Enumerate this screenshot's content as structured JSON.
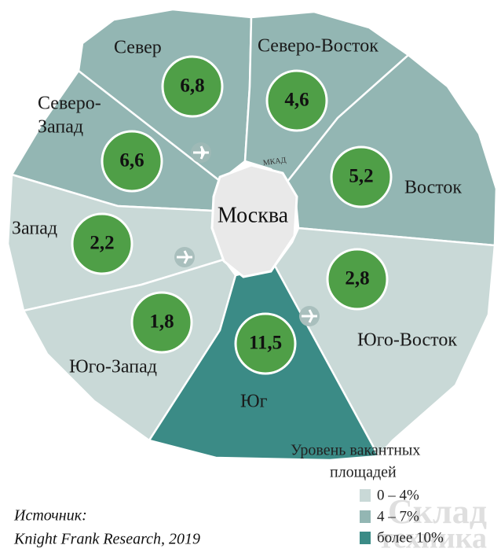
{
  "map": {
    "center": "Москва",
    "ring_road": "МКАД",
    "districts": [
      {
        "name": "Север",
        "value": "6,8"
      },
      {
        "name": "Северо-Восток",
        "value": "4,6"
      },
      {
        "name_lines": [
          "Северо-",
          "Запад"
        ],
        "value": "6,6"
      },
      {
        "name": "Восток",
        "value": "5,2"
      },
      {
        "name": "Запад",
        "value": "2,2"
      },
      {
        "name": "Юго-Восток",
        "value": "2,8"
      },
      {
        "name": "Юго-Запад",
        "value": "1,8"
      },
      {
        "name": "Юг",
        "value": "11,5"
      }
    ],
    "legend": {
      "title_lines": [
        "Уровень вакантных",
        "площадей"
      ],
      "items": [
        {
          "label": "0 – 4%",
          "color": "#c9d9d7"
        },
        {
          "label": "4 – 7%",
          "color": "#93b6b3"
        },
        {
          "label": "более 10%",
          "color": "#3b8b86"
        }
      ]
    },
    "source_lines": [
      "Источник:",
      "Knight Frank Research, 2019"
    ],
    "watermark_lines": [
      "Склад",
      "техника"
    ]
  }
}
